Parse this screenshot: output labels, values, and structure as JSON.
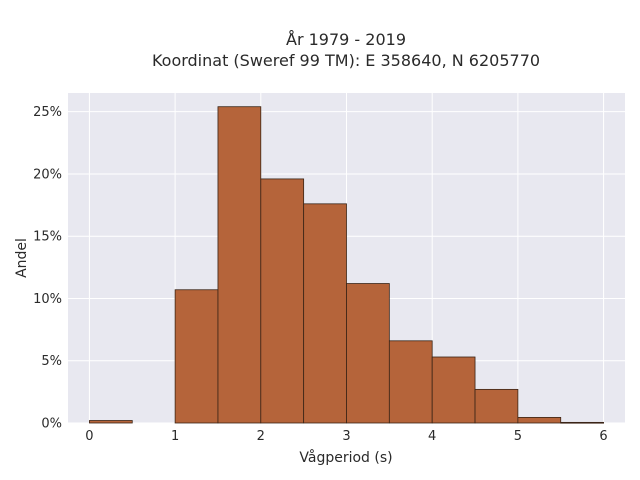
{
  "chart_data": {
    "type": "bar",
    "title_line1": "År 1979 - 2019",
    "title_line2": "Koordinat (Sweref 99 TM): E 358640, N 6205770",
    "xlabel": "Vågperiod (s)",
    "ylabel": "Andel",
    "xlim": [
      -0.25,
      6.25
    ],
    "ylim": [
      0,
      26.5
    ],
    "bin_width": 0.5,
    "bins": [
      {
        "x0": 0.0,
        "value": 0.2
      },
      {
        "x0": 0.5,
        "value": 0.0
      },
      {
        "x0": 1.0,
        "value": 10.7
      },
      {
        "x0": 1.5,
        "value": 25.4
      },
      {
        "x0": 2.0,
        "value": 19.6
      },
      {
        "x0": 2.5,
        "value": 17.6
      },
      {
        "x0": 3.0,
        "value": 11.2
      },
      {
        "x0": 3.5,
        "value": 6.6
      },
      {
        "x0": 4.0,
        "value": 5.3
      },
      {
        "x0": 4.5,
        "value": 2.7
      },
      {
        "x0": 5.0,
        "value": 0.45
      },
      {
        "x0": 5.5,
        "value": 0.05
      }
    ],
    "xticks": [
      0,
      1,
      2,
      3,
      4,
      5,
      6
    ],
    "xtick_labels": [
      "0",
      "1",
      "2",
      "3",
      "4",
      "5",
      "6"
    ],
    "yticks": [
      0,
      5,
      10,
      15,
      20,
      25
    ],
    "ytick_labels": [
      "0%",
      "5%",
      "10%",
      "15%",
      "20%",
      "25%"
    ],
    "grid": true,
    "colors": {
      "bar_fill": "#b5643a",
      "bar_stroke": "#3a2416",
      "plot_bg": "#e8e8f0",
      "grid": "#ffffff"
    }
  }
}
